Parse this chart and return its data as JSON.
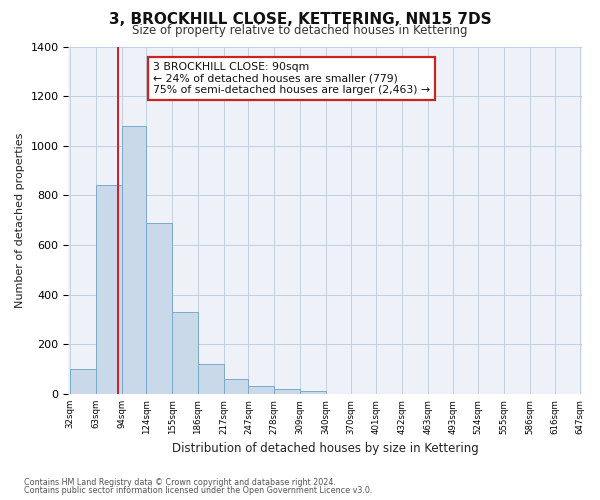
{
  "title": "3, BROCKHILL CLOSE, KETTERING, NN15 7DS",
  "subtitle": "Size of property relative to detached houses in Kettering",
  "xlabel": "Distribution of detached houses by size in Kettering",
  "ylabel": "Number of detached properties",
  "bar_values": [
    100,
    840,
    1080,
    690,
    330,
    120,
    60,
    30,
    20,
    10,
    0,
    0,
    0,
    0,
    0,
    0,
    0,
    0,
    0,
    0
  ],
  "bin_labels": [
    "32sqm",
    "63sqm",
    "94sqm",
    "124sqm",
    "155sqm",
    "186sqm",
    "217sqm",
    "247sqm",
    "278sqm",
    "309sqm",
    "340sqm",
    "370sqm",
    "401sqm",
    "432sqm",
    "463sqm",
    "493sqm",
    "524sqm",
    "555sqm",
    "586sqm",
    "616sqm",
    "647sqm"
  ],
  "bar_color": "#cad9ea",
  "bar_edge_color": "#7aaac8",
  "ylim": [
    0,
    1400
  ],
  "yticks": [
    0,
    200,
    400,
    600,
    800,
    1000,
    1200,
    1400
  ],
  "vline_x": 90,
  "annotation_line1": "3 BROCKHILL CLOSE: 90sqm",
  "annotation_line2": "← 24% of detached houses are smaller (779)",
  "annotation_line3": "75% of semi-detached houses are larger (2,463) →",
  "annotation_box_color": "#ffffff",
  "annotation_box_edge": "#cc2222",
  "vline_color": "#cc2222",
  "footnote1": "Contains HM Land Registry data © Crown copyright and database right 2024.",
  "footnote2": "Contains public sector information licensed under the Open Government Licence v3.0.",
  "background_color": "#eef2f8",
  "grid_color": "#b8cce0",
  "bin_edges": [
    32,
    63,
    94,
    124,
    155,
    186,
    217,
    247,
    278,
    309,
    340,
    370,
    401,
    432,
    463,
    493,
    524,
    555,
    586,
    616,
    647
  ]
}
